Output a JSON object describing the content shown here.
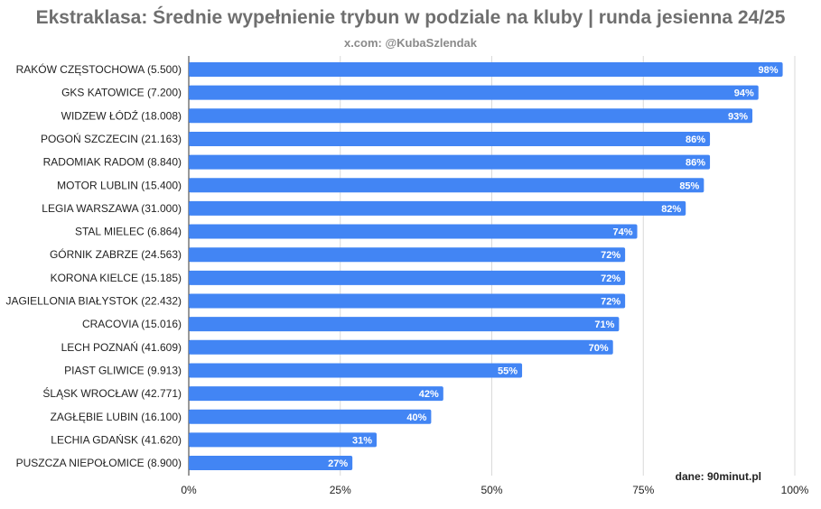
{
  "chart_data": {
    "type": "bar",
    "orientation": "horizontal",
    "title": "Ekstraklasa: Średnie wypełnienie trybun w podziale na kluby | runda jesienna 24/25",
    "subtitle": "x.com: @KubaSzlendak",
    "source": "dane: 90minut.pl",
    "categories": [
      "RAKÓW CZĘSTOCHOWA (5.500)",
      "GKS KATOWICE (7.200)",
      "WIDZEW ŁÓDŹ (18.008)",
      "POGOŃ SZCZECIN (21.163)",
      "RADOMIAK RADOM (8.840)",
      "MOTOR LUBLIN (15.400)",
      "LEGIA WARSZAWA (31.000)",
      "STAL MIELEC (6.864)",
      "GÓRNIK ZABRZE (24.563)",
      "KORONA KIELCE (15.185)",
      "JAGIELLONIA BIAŁYSTOK (22.432)",
      "CRACOVIA (15.016)",
      "LECH POZNAŃ (41.609)",
      "PIAST GLIWICE (9.913)",
      "ŚLĄSK WROCŁAW (42.771)",
      "ZAGŁĘBIE LUBIN (16.100)",
      "LECHIA GDAŃSK (41.620)",
      "PUSZCZA NIEPOŁOMICE (8.900)"
    ],
    "values": [
      98,
      94,
      93,
      86,
      86,
      85,
      82,
      74,
      72,
      72,
      72,
      71,
      70,
      55,
      42,
      40,
      31,
      27
    ],
    "value_labels": [
      "98%",
      "94%",
      "93%",
      "86%",
      "86%",
      "85%",
      "82%",
      "74%",
      "72%",
      "72%",
      "72%",
      "71%",
      "70%",
      "55%",
      "42%",
      "40%",
      "31%",
      "27%"
    ],
    "xlim": [
      0,
      100
    ],
    "x_ticks": [
      0,
      25,
      50,
      75,
      100
    ],
    "x_tick_labels": [
      "0%",
      "25%",
      "50%",
      "75%",
      "100%"
    ],
    "grid": true,
    "bar_color": "#4285f4"
  }
}
